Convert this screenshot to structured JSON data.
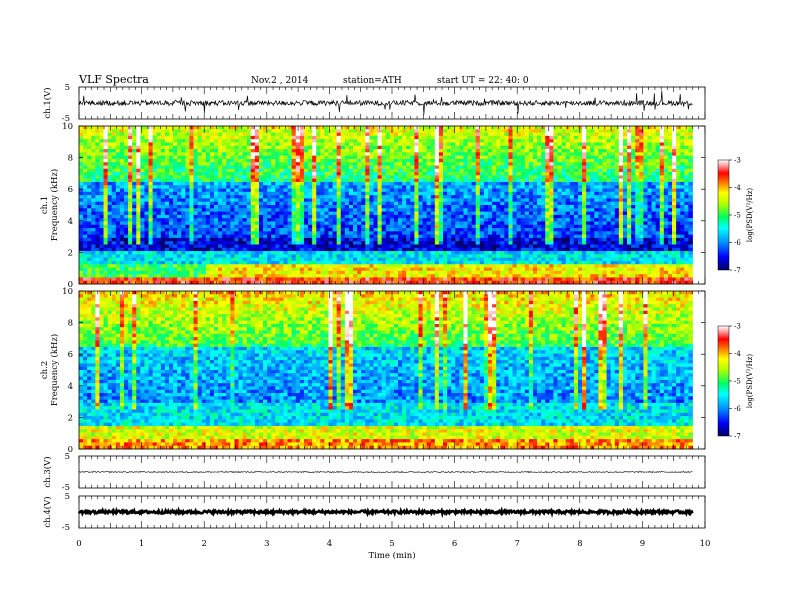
{
  "header": {
    "title": "VLF  Spectra",
    "date": "Nov.2  , 2014",
    "station": "station=ATH",
    "start": "start  UT  =   22: 40: 0"
  },
  "chart_data": [
    {
      "type": "line",
      "ylabel": "ch.1(V)",
      "ylim": [
        -5,
        5
      ],
      "yticks": [
        "5",
        "-5"
      ],
      "xlim": [
        0,
        10
      ],
      "baseline": 0
    },
    {
      "type": "heatmap",
      "ylabel_channel": "ch.1",
      "ylabel": "Frequency  (kHz)",
      "ylim": [
        0,
        10
      ],
      "yticks": [
        "0",
        "2",
        "4",
        "6",
        "8",
        "10"
      ],
      "xlim": [
        0,
        10
      ],
      "data_end_min": 9.8,
      "colorbar": {
        "label": "log(PSD(V²/Hz)",
        "range": [
          -7,
          -3
        ],
        "ticks": [
          "-3",
          "-4",
          "-5",
          "-6",
          "-7"
        ],
        "colors": [
          "#000080",
          "#0000ff",
          "#0080ff",
          "#00ffff",
          "#00ff80",
          "#80ff00",
          "#ffff00",
          "#ff8000",
          "#ff0000",
          "#ffb0b0",
          "#ffffff"
        ]
      }
    },
    {
      "type": "heatmap",
      "ylabel_channel": "ch.2",
      "ylabel": "Frequency  (kHz)",
      "ylim": [
        0,
        10
      ],
      "yticks": [
        "0",
        "2",
        "4",
        "6",
        "8",
        "10"
      ],
      "xlim": [
        0,
        10
      ],
      "data_end_min": 9.8,
      "colorbar": {
        "label": "log(PSD(V²/Hz)",
        "range": [
          -7,
          -3
        ],
        "ticks": [
          "-3",
          "-4",
          "-5",
          "-6",
          "-7"
        ]
      }
    },
    {
      "type": "line",
      "ylabel": "ch.3(V)",
      "ylim": [
        -5,
        5
      ],
      "yticks": [
        "5",
        "-5"
      ],
      "xlim": [
        0,
        10
      ],
      "baseline": 0
    },
    {
      "type": "line",
      "ylabel": "ch.4(V)",
      "ylim": [
        -5,
        5
      ],
      "yticks": [
        "5",
        "-5"
      ],
      "xlim": [
        0,
        10
      ],
      "baseline": 0
    }
  ],
  "xaxis": {
    "label": "Time  (min)",
    "ticks": [
      "0",
      "1",
      "2",
      "3",
      "4",
      "5",
      "6",
      "7",
      "8",
      "9",
      "10"
    ]
  }
}
